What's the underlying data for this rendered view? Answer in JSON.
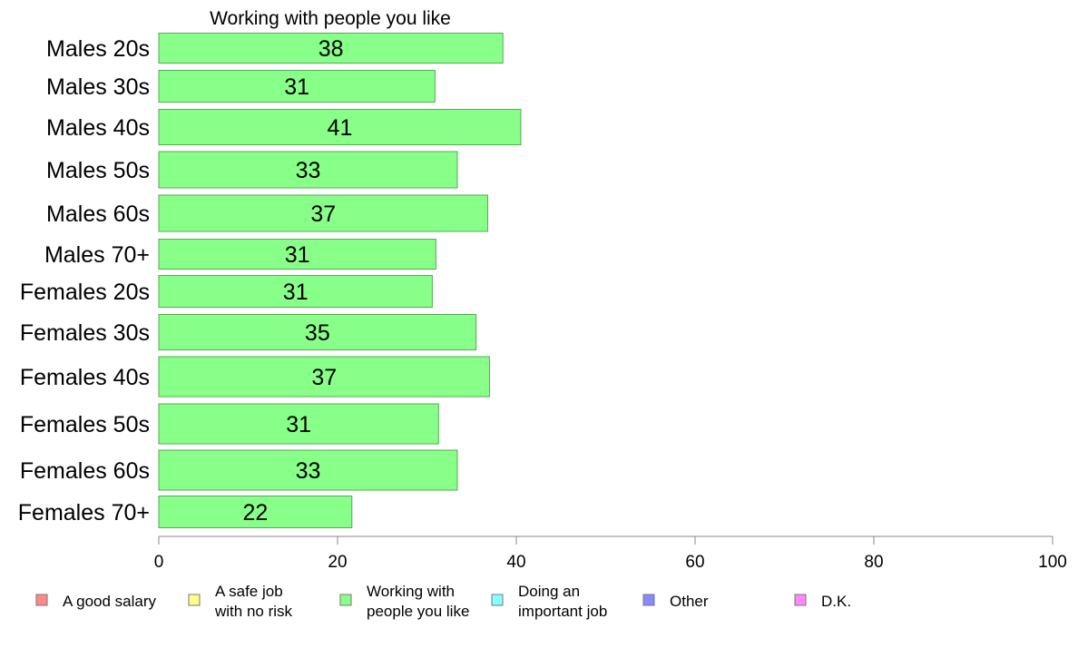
{
  "chart_data": {
    "type": "bar",
    "orientation": "horizontal",
    "title": "Working with people you like",
    "categories": [
      "Males 20s",
      "Males 30s",
      "Males 40s",
      "Males 50s",
      "Males 60s",
      "Males 70+",
      "Females 20s",
      "Females 30s",
      "Females 40s",
      "Females 50s",
      "Females 60s",
      "Females 70+"
    ],
    "values": [
      38,
      31,
      41,
      33,
      37,
      31,
      31,
      35,
      37,
      31,
      33,
      22
    ],
    "bar_lengths": [
      38.5,
      30.9,
      40.5,
      33.4,
      36.8,
      31.0,
      30.6,
      35.5,
      37.0,
      31.3,
      33.4,
      21.6
    ],
    "bar_thickness": [
      33,
      35,
      39,
      40,
      40,
      33,
      35,
      39,
      44,
      44,
      44,
      35
    ],
    "xlim": [
      0,
      100
    ],
    "xticks": [
      0,
      20,
      40,
      60,
      80,
      100
    ],
    "xlabel": "",
    "ylabel": "",
    "grid": false,
    "bar_color": "#88ff88",
    "bar_edge_color": "#55aa55",
    "legend": {
      "placement": "bottom",
      "items": [
        {
          "lines": [
            "A good salary"
          ],
          "color": "#ff8888"
        },
        {
          "lines": [
            "A safe job",
            "with no risk"
          ],
          "color": "#ffff88"
        },
        {
          "lines": [
            "Working with",
            "people you like"
          ],
          "color": "#88ff88"
        },
        {
          "lines": [
            "Doing an",
            "important job"
          ],
          "color": "#88ffff"
        },
        {
          "lines": [
            "Other"
          ],
          "color": "#8888ff"
        },
        {
          "lines": [
            "D.K."
          ],
          "color": "#ff88ff"
        }
      ]
    }
  }
}
